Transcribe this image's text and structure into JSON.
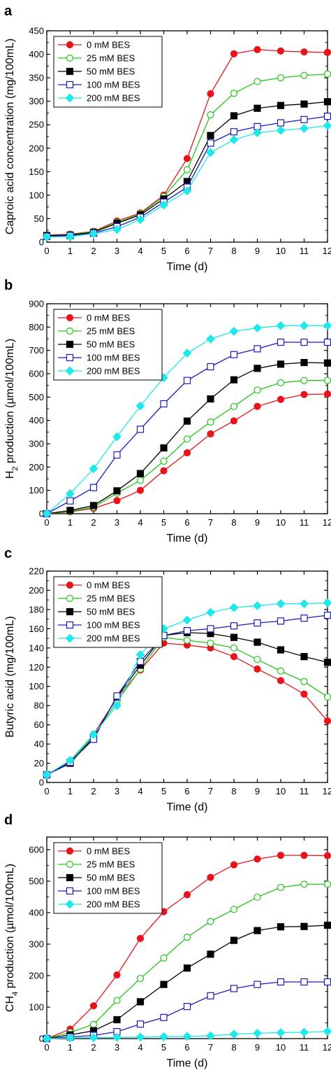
{
  "figure": {
    "colors": {
      "series": [
        "#e8141c",
        "#22c51a",
        "#000000",
        "#1a1ab8",
        "#1ee8e8"
      ],
      "axis": "#000000",
      "background": "#ffffff"
    },
    "marker_styles": [
      "filled-circle",
      "open-circle",
      "filled-square",
      "open-square",
      "filled-diamond"
    ]
  },
  "chart_data": [
    {
      "panel_label": "a",
      "type": "line",
      "x": [
        0,
        1,
        2,
        3,
        4,
        5,
        6,
        7,
        8,
        9,
        10,
        11,
        12
      ],
      "xlabel": "Time (d)",
      "ylabel": "Caproic acid concentration (mg/100mL)",
      "xlim": [
        0,
        12
      ],
      "ylim": [
        0,
        450
      ],
      "yticks": [
        0,
        50,
        100,
        150,
        200,
        250,
        300,
        350,
        400,
        450
      ],
      "xticks": [
        0,
        1,
        2,
        3,
        4,
        5,
        6,
        7,
        8,
        9,
        10,
        11,
        12
      ],
      "grid": false,
      "legend_position": "top-left",
      "series": [
        {
          "name": "0 mM BES",
          "values": [
            15,
            17,
            23,
            45,
            62,
            100,
            178,
            316,
            401,
            410,
            407,
            405,
            404
          ]
        },
        {
          "name": "25 mM BES",
          "values": [
            14,
            16,
            22,
            42,
            60,
            97,
            154,
            271,
            317,
            342,
            350,
            355,
            358
          ]
        },
        {
          "name": "50 mM BES",
          "values": [
            14,
            15,
            21,
            40,
            58,
            92,
            129,
            227,
            269,
            285,
            291,
            294,
            299
          ]
        },
        {
          "name": "100 mM BES",
          "values": [
            12,
            14,
            19,
            33,
            53,
            85,
            117,
            211,
            235,
            246,
            254,
            261,
            268
          ]
        },
        {
          "name": "200 mM BES",
          "values": [
            11,
            12,
            18,
            27,
            48,
            79,
            109,
            191,
            218,
            233,
            238,
            242,
            248
          ]
        }
      ]
    },
    {
      "panel_label": "b",
      "type": "line",
      "x": [
        0,
        1,
        2,
        3,
        4,
        5,
        6,
        7,
        8,
        9,
        10,
        11,
        12
      ],
      "xlabel": "Time (d)",
      "ylabel_main": "H",
      "ylabel_sub": "2",
      "ylabel_rest": " production (µmol/100mL)",
      "xlim": [
        0,
        12
      ],
      "ylim": [
        0,
        900
      ],
      "yticks": [
        0,
        100,
        200,
        300,
        400,
        500,
        600,
        700,
        800,
        900
      ],
      "xticks": [
        0,
        1,
        2,
        3,
        4,
        5,
        6,
        7,
        8,
        9,
        10,
        11,
        12
      ],
      "grid": false,
      "legend_position": "top-left",
      "series": [
        {
          "name": "0 mM BES",
          "values": [
            0,
            8,
            23,
            56,
            100,
            184,
            261,
            342,
            398,
            460,
            490,
            511,
            513
          ]
        },
        {
          "name": "25 mM BES",
          "values": [
            0,
            10,
            28,
            88,
            143,
            225,
            320,
            393,
            460,
            530,
            561,
            571,
            571
          ]
        },
        {
          "name": "50 mM BES",
          "values": [
            0,
            14,
            35,
            98,
            172,
            282,
            397,
            492,
            574,
            623,
            641,
            648,
            646
          ]
        },
        {
          "name": "100 mM BES",
          "values": [
            0,
            55,
            112,
            252,
            362,
            471,
            571,
            630,
            682,
            707,
            735,
            735,
            735
          ]
        },
        {
          "name": "200 mM BES",
          "values": [
            0,
            86,
            193,
            330,
            462,
            583,
            688,
            749,
            782,
            796,
            806,
            806,
            806
          ]
        }
      ]
    },
    {
      "panel_label": "c",
      "type": "line",
      "x": [
        0,
        1,
        2,
        3,
        4,
        5,
        6,
        7,
        8,
        9,
        10,
        11,
        12
      ],
      "xlabel": "Time (d)",
      "ylabel": "Butyric acid (mg/100mL)",
      "xlim": [
        0,
        12
      ],
      "ylim": [
        0,
        220
      ],
      "yticks": [
        0,
        20,
        40,
        60,
        80,
        100,
        120,
        140,
        160,
        180,
        200,
        220
      ],
      "xticks": [
        0,
        1,
        2,
        3,
        4,
        5,
        6,
        7,
        8,
        9,
        10,
        11,
        12
      ],
      "grid": false,
      "legend_position": "top-left",
      "series": [
        {
          "name": "0 mM BES",
          "values": [
            8,
            22,
            50,
            88,
            117,
            145,
            143,
            140,
            131,
            118,
            106,
            92,
            64
          ]
        },
        {
          "name": "25 mM BES",
          "values": [
            8,
            21,
            49,
            84,
            118,
            151,
            148,
            145,
            140,
            128,
            116,
            105,
            89
          ]
        },
        {
          "name": "50 mM BES",
          "values": [
            8,
            20,
            47,
            89,
            122,
            153,
            156,
            155,
            151,
            146,
            138,
            131,
            125
          ]
        },
        {
          "name": "100 mM BES",
          "values": [
            8,
            21,
            45,
            90,
            126,
            153,
            158,
            160,
            163,
            166,
            168,
            171,
            174
          ]
        },
        {
          "name": "200 mM BES",
          "values": [
            8,
            23,
            50,
            80,
            133,
            160,
            169,
            177,
            182,
            184,
            186,
            186,
            187
          ]
        }
      ]
    },
    {
      "panel_label": "d",
      "type": "line",
      "x": [
        0,
        1,
        2,
        3,
        4,
        5,
        6,
        7,
        8,
        9,
        10,
        11,
        12
      ],
      "xlabel": "Time (d)",
      "ylabel_main": "CH",
      "ylabel_sub": "4",
      "ylabel_rest": " production (µmol/100mL)",
      "xlim": [
        0,
        12
      ],
      "ylim": [
        0,
        640
      ],
      "yticks": [
        0,
        100,
        200,
        300,
        400,
        500,
        600
      ],
      "xticks": [
        0,
        1,
        2,
        3,
        4,
        5,
        6,
        7,
        8,
        9,
        10,
        11,
        12
      ],
      "grid": false,
      "legend_position": "top-left",
      "series": [
        {
          "name": "0 mM BES",
          "values": [
            0,
            30,
            104,
            202,
            318,
            403,
            457,
            512,
            552,
            570,
            582,
            582,
            581
          ]
        },
        {
          "name": "25 mM BES",
          "values": [
            0,
            20,
            45,
            121,
            191,
            256,
            322,
            372,
            410,
            449,
            480,
            490,
            490
          ]
        },
        {
          "name": "50 mM BES",
          "values": [
            0,
            12,
            25,
            60,
            117,
            172,
            224,
            268,
            312,
            343,
            355,
            356,
            360
          ]
        },
        {
          "name": "100 mM BES",
          "values": [
            0,
            5,
            10,
            22,
            46,
            67,
            102,
            136,
            159,
            172,
            180,
            180,
            180
          ]
        },
        {
          "name": "200 mM BES",
          "values": [
            0,
            2,
            3,
            4,
            5,
            6,
            7,
            9,
            14,
            17,
            19,
            20,
            23
          ]
        }
      ]
    }
  ]
}
